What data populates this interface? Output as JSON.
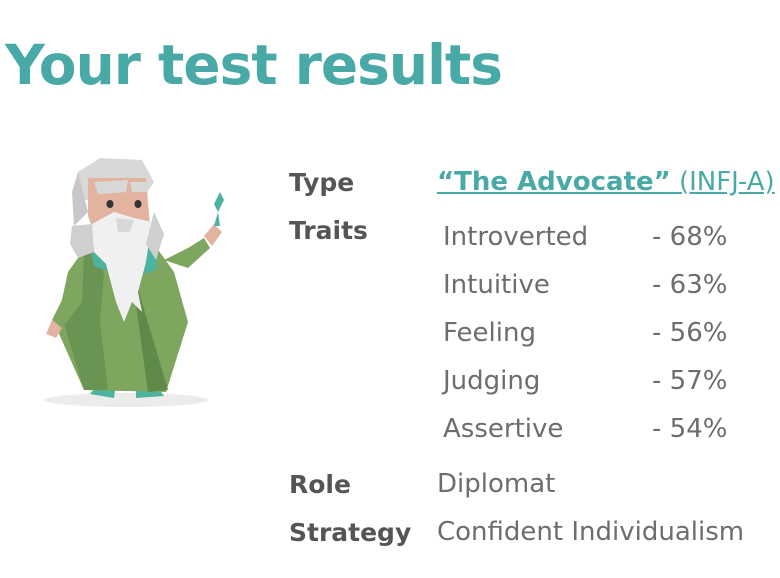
{
  "title": "Your test results",
  "type": {
    "label": "Type",
    "name": "“The Advocate”",
    "code": "(INFJ-A)"
  },
  "traits": {
    "label": "Traits",
    "items": [
      {
        "name": "Introverted",
        "percent": "-  68%"
      },
      {
        "name": "Intuitive",
        "percent": "-  63%"
      },
      {
        "name": "Feeling",
        "percent": "-  56%"
      },
      {
        "name": "Judging",
        "percent": "-  57%"
      },
      {
        "name": "Assertive",
        "percent": "-  54%"
      }
    ]
  },
  "role": {
    "label": "Role",
    "value": "Diplomat"
  },
  "strategy": {
    "label": "Strategy",
    "value": "Confident Individualism"
  },
  "colors": {
    "accent": "#48a9a6",
    "label": "#555557",
    "text": "#6d6d70",
    "robe": "#7ea65f"
  }
}
